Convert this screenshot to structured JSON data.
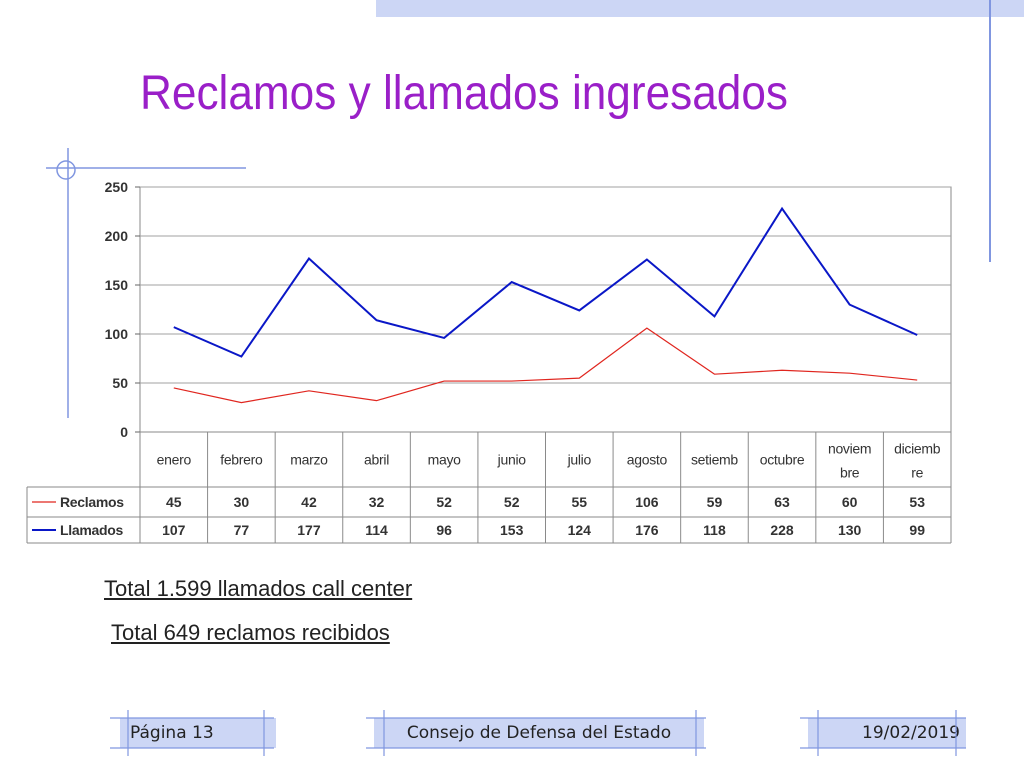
{
  "title": "Reclamos y llamados ingresados",
  "accent_color": "#9a1fc8",
  "chart_data": {
    "type": "line",
    "categories": [
      "enero",
      "febrero",
      "marzo",
      "abril",
      "mayo",
      "junio",
      "julio",
      "agosto",
      "setiemb",
      "octubre",
      "noviem bre",
      "diciemb re"
    ],
    "series": [
      {
        "name": "Reclamos",
        "color": "#e0261f",
        "values": [
          45,
          30,
          42,
          32,
          52,
          52,
          55,
          106,
          59,
          63,
          60,
          53
        ]
      },
      {
        "name": "Llamados",
        "color": "#0a17c7",
        "values": [
          107,
          77,
          177,
          114,
          96,
          153,
          124,
          176,
          118,
          228,
          130,
          99
        ]
      }
    ],
    "ylim": [
      0,
      250
    ],
    "yticks": [
      "0",
      "50",
      "100",
      "150",
      "200",
      "250"
    ],
    "grid": true,
    "legend": "data-table-left"
  },
  "totals": {
    "llamados": "Total 1.599 llamados call center",
    "reclamos": "Total 649 reclamos recibidos"
  },
  "footer": {
    "page": "Página 13",
    "org": "Consejo de Defensa del Estado",
    "date": "19/02/2019"
  }
}
